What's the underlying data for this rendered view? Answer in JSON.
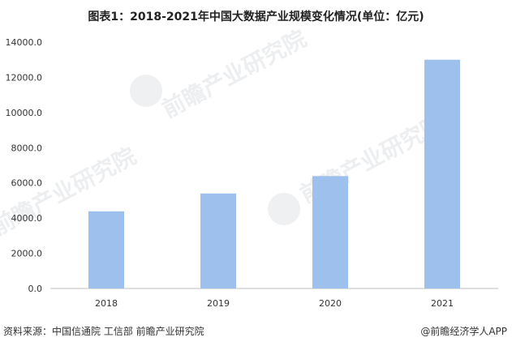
{
  "title": "图表1：2018-2021年中国大数据产业规模变化情况(单位：亿元)",
  "source": "资料来源：中国信通院 工信部 前瞻产业研究院",
  "credit": "@前瞻经济学人APP",
  "watermark": "前瞻产业研究院",
  "colors": {
    "bar": "#9DC0EC",
    "axis": "#BFBFBF",
    "text": "#333333"
  },
  "chart_data": {
    "type": "bar",
    "categories": [
      "2018",
      "2019",
      "2020",
      "2021"
    ],
    "values": [
      4384.5,
      5397.2,
      6388,
      13000
    ],
    "ylim": [
      0,
      14000
    ],
    "yticks": [
      "0.0",
      "2000.0",
      "4000.0",
      "6000.0",
      "8000.0",
      "10000.0",
      "12000.0",
      "14000.0"
    ],
    "grid": false,
    "legend": "none"
  }
}
